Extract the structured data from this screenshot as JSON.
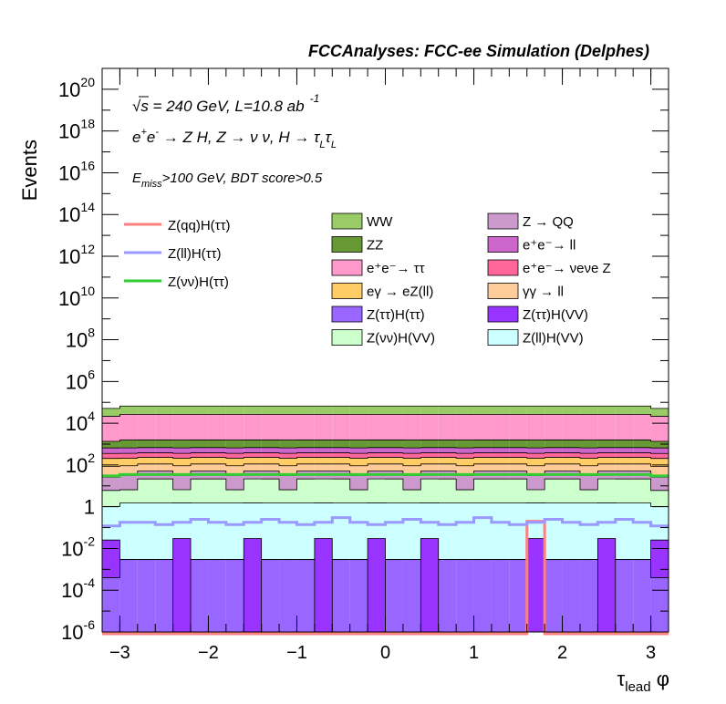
{
  "chart_data": {
    "type": "bar",
    "title": "FCCAnalyses: FCC-ee Simulation (Delphes)",
    "xlabel": "τlead φ",
    "ylabel": "Events",
    "yscale": "log",
    "xlim": [
      -3.2,
      3.2
    ],
    "ylim": [
      1e-06,
      1e+21
    ],
    "x_ticks": [
      "−3",
      "−2",
      "−1",
      "0",
      "1",
      "2",
      "3"
    ],
    "y_ticks": [
      {
        "base": "10",
        "exp": "20"
      },
      {
        "base": "10",
        "exp": "18"
      },
      {
        "base": "10",
        "exp": "16"
      },
      {
        "base": "10",
        "exp": "14"
      },
      {
        "base": "10",
        "exp": "12"
      },
      {
        "base": "10",
        "exp": "10"
      },
      {
        "base": "10",
        "exp": "8"
      },
      {
        "base": "10",
        "exp": "6"
      },
      {
        "base": "10",
        "exp": "4"
      },
      {
        "base": "10",
        "exp": "2"
      },
      {
        "base": "1",
        "exp": ""
      },
      {
        "base": "10",
        "exp": "-2"
      },
      {
        "base": "10",
        "exp": "-4"
      },
      {
        "base": "10",
        "exp": "-6"
      }
    ],
    "annotations": {
      "sqrt_s": "√s = 240 GeV, L=10.8 ab",
      "lumi_exp": "-1",
      "process": "e⁺e⁻ → Z H, Z → νν, H → τLτL",
      "selection": "Emiss>100 GeV, BDT score>0.5"
    },
    "legend": {
      "placement": "top",
      "lines": [
        {
          "name": "Z(qq)H(ττ)",
          "color": "#ff8080"
        },
        {
          "name": "Z(ll)H(ττ)",
          "color": "#9999ff"
        },
        {
          "name": "Z(νν)H(ττ)",
          "color": "#33cc33"
        }
      ],
      "stack": [
        {
          "name": "WW",
          "color": "#99cc66"
        },
        {
          "name": "Z → QQ",
          "color": "#cc99cc"
        },
        {
          "name": "ZZ",
          "color": "#669933"
        },
        {
          "name": "e⁺e⁻→ ll",
          "color": "#cc66cc"
        },
        {
          "name": "e⁺e⁻→ ττ",
          "color": "#ff99cc"
        },
        {
          "name": "e⁺e⁻→ νeνe Z",
          "color": "#ff6699"
        },
        {
          "name": "eγ → eZ(ll)",
          "color": "#ffcc66"
        },
        {
          "name": "γγ → ll",
          "color": "#ffcc99"
        },
        {
          "name": "Z(ττ)H(ττ)",
          "color": "#9966ff"
        },
        {
          "name": "Z(ττ)H(VV)",
          "color": "#9933ff"
        },
        {
          "name": "Z(νν)H(VV)",
          "color": "#ccffcc"
        },
        {
          "name": "Z(ll)H(VV)",
          "color": "#ccffff"
        }
      ]
    },
    "bin_edges": [
      -3.2,
      -3.0,
      -2.8,
      -2.6,
      -2.4,
      -2.2,
      -2.0,
      -1.8,
      -1.6,
      -1.4,
      -1.2,
      -1.0,
      -0.8,
      -0.6,
      -0.4,
      -0.2,
      0.0,
      0.2,
      0.4,
      0.6,
      0.8,
      1.0,
      1.2,
      1.4,
      1.6,
      1.8,
      2.0,
      2.2,
      2.4,
      2.6,
      2.8,
      3.0,
      3.2
    ],
    "stack_series": [
      {
        "name": "Z(ττ)H(ττ)",
        "color": "#9966ff",
        "values": [
          0.0004,
          0.003,
          0.003,
          0.003,
          1e-07,
          0.003,
          0.003,
          0.003,
          1e-07,
          0.003,
          0.003,
          0.003,
          1e-07,
          0.003,
          0.003,
          1e-07,
          0.003,
          0.003,
          1e-07,
          0.003,
          0.003,
          0.003,
          0.003,
          0.003,
          1e-07,
          0.003,
          0.003,
          0.003,
          1e-07,
          0.003,
          0.003,
          0.0004
        ]
      },
      {
        "name": "Z(ττ)H(VV)",
        "color": "#9933ff",
        "values": [
          0.025,
          0.0,
          0.0,
          0.0,
          0.03,
          0.0,
          0.0,
          0.0,
          0.03,
          0.0,
          0.0,
          0.0,
          0.03,
          0.0,
          0.0,
          0.03,
          0.0,
          0.0,
          0.03,
          0.0,
          0.0,
          0.0,
          0.0,
          0.0,
          0.03,
          0.0,
          0.0,
          0.0,
          0.03,
          0.0,
          0.0,
          0.025
        ]
      },
      {
        "name": "Z(ll)H(VV)",
        "color": "#ccffff",
        "values": [
          1.0,
          1.5,
          1.5,
          1.5,
          1.5,
          1.5,
          1.5,
          1.5,
          1.5,
          1.5,
          1.5,
          1.5,
          1.5,
          1.5,
          1.5,
          1.5,
          1.5,
          1.5,
          1.5,
          1.5,
          1.5,
          1.5,
          1.5,
          1.5,
          1.5,
          1.5,
          1.5,
          1.5,
          1.5,
          1.5,
          1.5,
          1.0
        ]
      },
      {
        "name": "Z(νν)H(VV)",
        "color": "#ccffcc",
        "values": [
          5,
          5,
          20,
          20,
          5,
          20,
          20,
          5,
          20,
          20,
          5,
          20,
          20,
          20,
          5,
          20,
          20,
          5,
          20,
          20,
          5,
          20,
          20,
          20,
          5,
          20,
          20,
          5,
          20,
          20,
          20,
          5
        ]
      },
      {
        "name": "Z → QQ",
        "color": "#cc99cc",
        "values": [
          20,
          25,
          30,
          30,
          25,
          30,
          30,
          25,
          30,
          30,
          25,
          30,
          30,
          30,
          25,
          30,
          30,
          25,
          30,
          30,
          25,
          30,
          30,
          30,
          25,
          30,
          30,
          25,
          30,
          30,
          30,
          20
        ]
      },
      {
        "name": "γγ → ll",
        "color": "#ffcc99",
        "values": [
          60,
          60,
          60,
          60,
          60,
          60,
          60,
          60,
          60,
          60,
          60,
          60,
          60,
          60,
          60,
          60,
          60,
          60,
          60,
          60,
          60,
          60,
          60,
          60,
          60,
          60,
          60,
          60,
          60,
          60,
          60,
          60
        ]
      },
      {
        "name": "eγ → eZ(ll)",
        "color": "#ffcc66",
        "values": [
          120,
          120,
          120,
          120,
          120,
          120,
          120,
          120,
          120,
          120,
          120,
          120,
          120,
          120,
          120,
          120,
          120,
          120,
          120,
          120,
          120,
          120,
          120,
          120,
          120,
          120,
          120,
          120,
          120,
          120,
          120,
          120
        ]
      },
      {
        "name": "e⁺e⁻→ νeνe Z",
        "color": "#ff6699",
        "values": [
          150,
          150,
          150,
          150,
          150,
          150,
          150,
          150,
          150,
          150,
          150,
          150,
          150,
          150,
          150,
          150,
          150,
          150,
          150,
          150,
          150,
          150,
          150,
          150,
          150,
          150,
          150,
          150,
          150,
          150,
          150,
          150
        ]
      },
      {
        "name": "e⁺e⁻→ ll",
        "color": "#cc66cc",
        "values": [
          300,
          300,
          300,
          300,
          300,
          300,
          300,
          300,
          300,
          300,
          300,
          300,
          300,
          300,
          300,
          300,
          300,
          300,
          300,
          300,
          300,
          300,
          300,
          300,
          300,
          300,
          300,
          300,
          300,
          300,
          300,
          300
        ]
      },
      {
        "name": "ZZ",
        "color": "#669933",
        "values": [
          700,
          900,
          900,
          900,
          900,
          900,
          900,
          900,
          900,
          900,
          900,
          900,
          900,
          900,
          900,
          900,
          900,
          900,
          900,
          900,
          900,
          900,
          900,
          900,
          900,
          900,
          900,
          900,
          900,
          900,
          900,
          700
        ]
      },
      {
        "name": "e⁺e⁻→ ττ",
        "color": "#ff99cc",
        "values": [
          20000,
          25000,
          25000,
          25000,
          25000,
          25000,
          25000,
          25000,
          25000,
          25000,
          25000,
          25000,
          25000,
          25000,
          25000,
          25000,
          25000,
          25000,
          25000,
          25000,
          25000,
          25000,
          25000,
          25000,
          25000,
          25000,
          25000,
          25000,
          25000,
          25000,
          25000,
          20000
        ]
      },
      {
        "name": "WW",
        "color": "#99cc66",
        "values": [
          30000,
          40000,
          40000,
          40000,
          40000,
          40000,
          40000,
          40000,
          40000,
          40000,
          40000,
          40000,
          40000,
          40000,
          40000,
          40000,
          40000,
          40000,
          40000,
          40000,
          40000,
          40000,
          40000,
          40000,
          40000,
          40000,
          40000,
          40000,
          40000,
          40000,
          40000,
          30000
        ]
      }
    ],
    "line_series": [
      {
        "name": "Z(qq)H(ττ)",
        "color": "#ff8080",
        "values": [
          0,
          0,
          0,
          0,
          0,
          0,
          0,
          0,
          0,
          0,
          0,
          0,
          0,
          0,
          0,
          0,
          0,
          0,
          0,
          0,
          0,
          0,
          0,
          0,
          0.2,
          0,
          0,
          0,
          0,
          0,
          0,
          0
        ]
      },
      {
        "name": "Z(ll)H(ττ)",
        "color": "#9999ff",
        "values": [
          0.12,
          0.18,
          0.18,
          0.14,
          0.18,
          0.25,
          0.18,
          0.14,
          0.18,
          0.25,
          0.18,
          0.14,
          0.18,
          0.3,
          0.18,
          0.14,
          0.18,
          0.25,
          0.18,
          0.14,
          0.18,
          0.3,
          0.18,
          0.14,
          0.18,
          0.25,
          0.18,
          0.14,
          0.18,
          0.25,
          0.18,
          0.12
        ]
      },
      {
        "name": "Z(νν)H(ττ)",
        "color": "#33cc33",
        "values": [
          30,
          35,
          35,
          35,
          35,
          35,
          35,
          35,
          35,
          35,
          35,
          35,
          35,
          35,
          35,
          35,
          35,
          35,
          35,
          35,
          35,
          35,
          35,
          35,
          35,
          35,
          35,
          35,
          35,
          35,
          35,
          30
        ]
      }
    ]
  }
}
